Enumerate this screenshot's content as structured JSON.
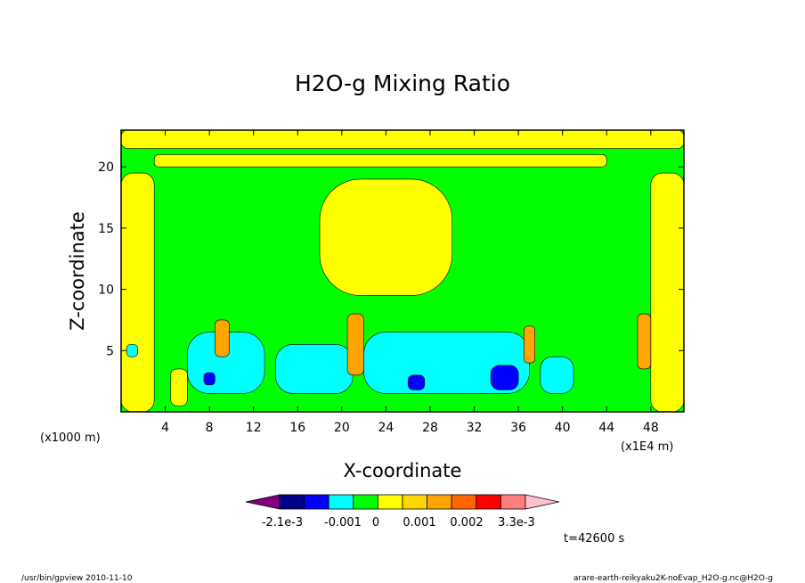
{
  "footer": {
    "left": "/usr/bin/gpview   2010-11-10",
    "right": "arare-earth-reikyaku2K-noEvap_H2O-g.nc@H2O-g"
  },
  "chart_data": {
    "type": "heatmap",
    "title": "H2O-g Mixing Ratio",
    "xlabel": "X-coordinate",
    "ylabel": "Z-coordinate",
    "x_unit_left": "(x1000 m)",
    "x_unit_right": "(x1E4 m)",
    "time_label": "t=42600 s",
    "xlim": [
      0,
      51
    ],
    "ylim": [
      0,
      23
    ],
    "x_ticks": [
      4,
      8,
      12,
      16,
      20,
      24,
      28,
      32,
      36,
      40,
      44,
      48
    ],
    "y_ticks": [
      5,
      10,
      15,
      20
    ],
    "grid": false,
    "colorbar": {
      "colors": [
        "#800080",
        "#00008b",
        "#0000ff",
        "#00ffff",
        "#00ff00",
        "#ffff00",
        "#ffd700",
        "#ffa500",
        "#ff6600",
        "#ff0000",
        "#ff7f7f",
        "#ffc0cb"
      ],
      "labels": [
        "-2.1e-3",
        "-0.001",
        "0",
        "0.001",
        "0.002",
        "3.3e-3"
      ]
    },
    "series": [
      {
        "level": "positive",
        "color": "#ffff00",
        "regions": [
          {
            "x": [
              0,
              51
            ],
            "y": [
              21.5,
              23
            ]
          },
          {
            "x": [
              3,
              44
            ],
            "y": [
              20,
              21
            ]
          },
          {
            "x": [
              0,
              3
            ],
            "y": [
              0,
              19.5
            ]
          },
          {
            "x": [
              48,
              51
            ],
            "y": [
              0,
              19.5
            ]
          },
          {
            "x": [
              18,
              30
            ],
            "y": [
              9.5,
              19
            ]
          },
          {
            "x": [
              4.5,
              6
            ],
            "y": [
              0.5,
              3.5
            ]
          }
        ]
      },
      {
        "level": "negative",
        "color": "#00ffff",
        "regions": [
          {
            "x": [
              6,
              13
            ],
            "y": [
              1.5,
              6.5
            ]
          },
          {
            "x": [
              14,
              21
            ],
            "y": [
              1.5,
              5.5
            ]
          },
          {
            "x": [
              22,
              37
            ],
            "y": [
              1.5,
              6.5
            ]
          },
          {
            "x": [
              38,
              41
            ],
            "y": [
              1.5,
              4.5
            ]
          },
          {
            "x": [
              0.5,
              1.5
            ],
            "y": [
              4.5,
              5.5
            ]
          }
        ]
      },
      {
        "level": "most_negative",
        "color": "#0000ff",
        "regions": [
          {
            "x": [
              7.5,
              8.5
            ],
            "y": [
              2.2,
              3.2
            ]
          },
          {
            "x": [
              26,
              27.5
            ],
            "y": [
              1.8,
              3.0
            ]
          },
          {
            "x": [
              33.5,
              36
            ],
            "y": [
              1.8,
              3.8
            ]
          }
        ]
      },
      {
        "level": "plume",
        "color": "#ffa500",
        "regions": [
          {
            "x": [
              8.5,
              9.8
            ],
            "y": [
              4.5,
              7.5
            ]
          },
          {
            "x": [
              20.5,
              22.0
            ],
            "y": [
              3.0,
              8.0
            ]
          },
          {
            "x": [
              36.5,
              37.5
            ],
            "y": [
              4.0,
              7.0
            ]
          },
          {
            "x": [
              46.8,
              48.0
            ],
            "y": [
              3.5,
              8.0
            ]
          }
        ]
      }
    ]
  }
}
